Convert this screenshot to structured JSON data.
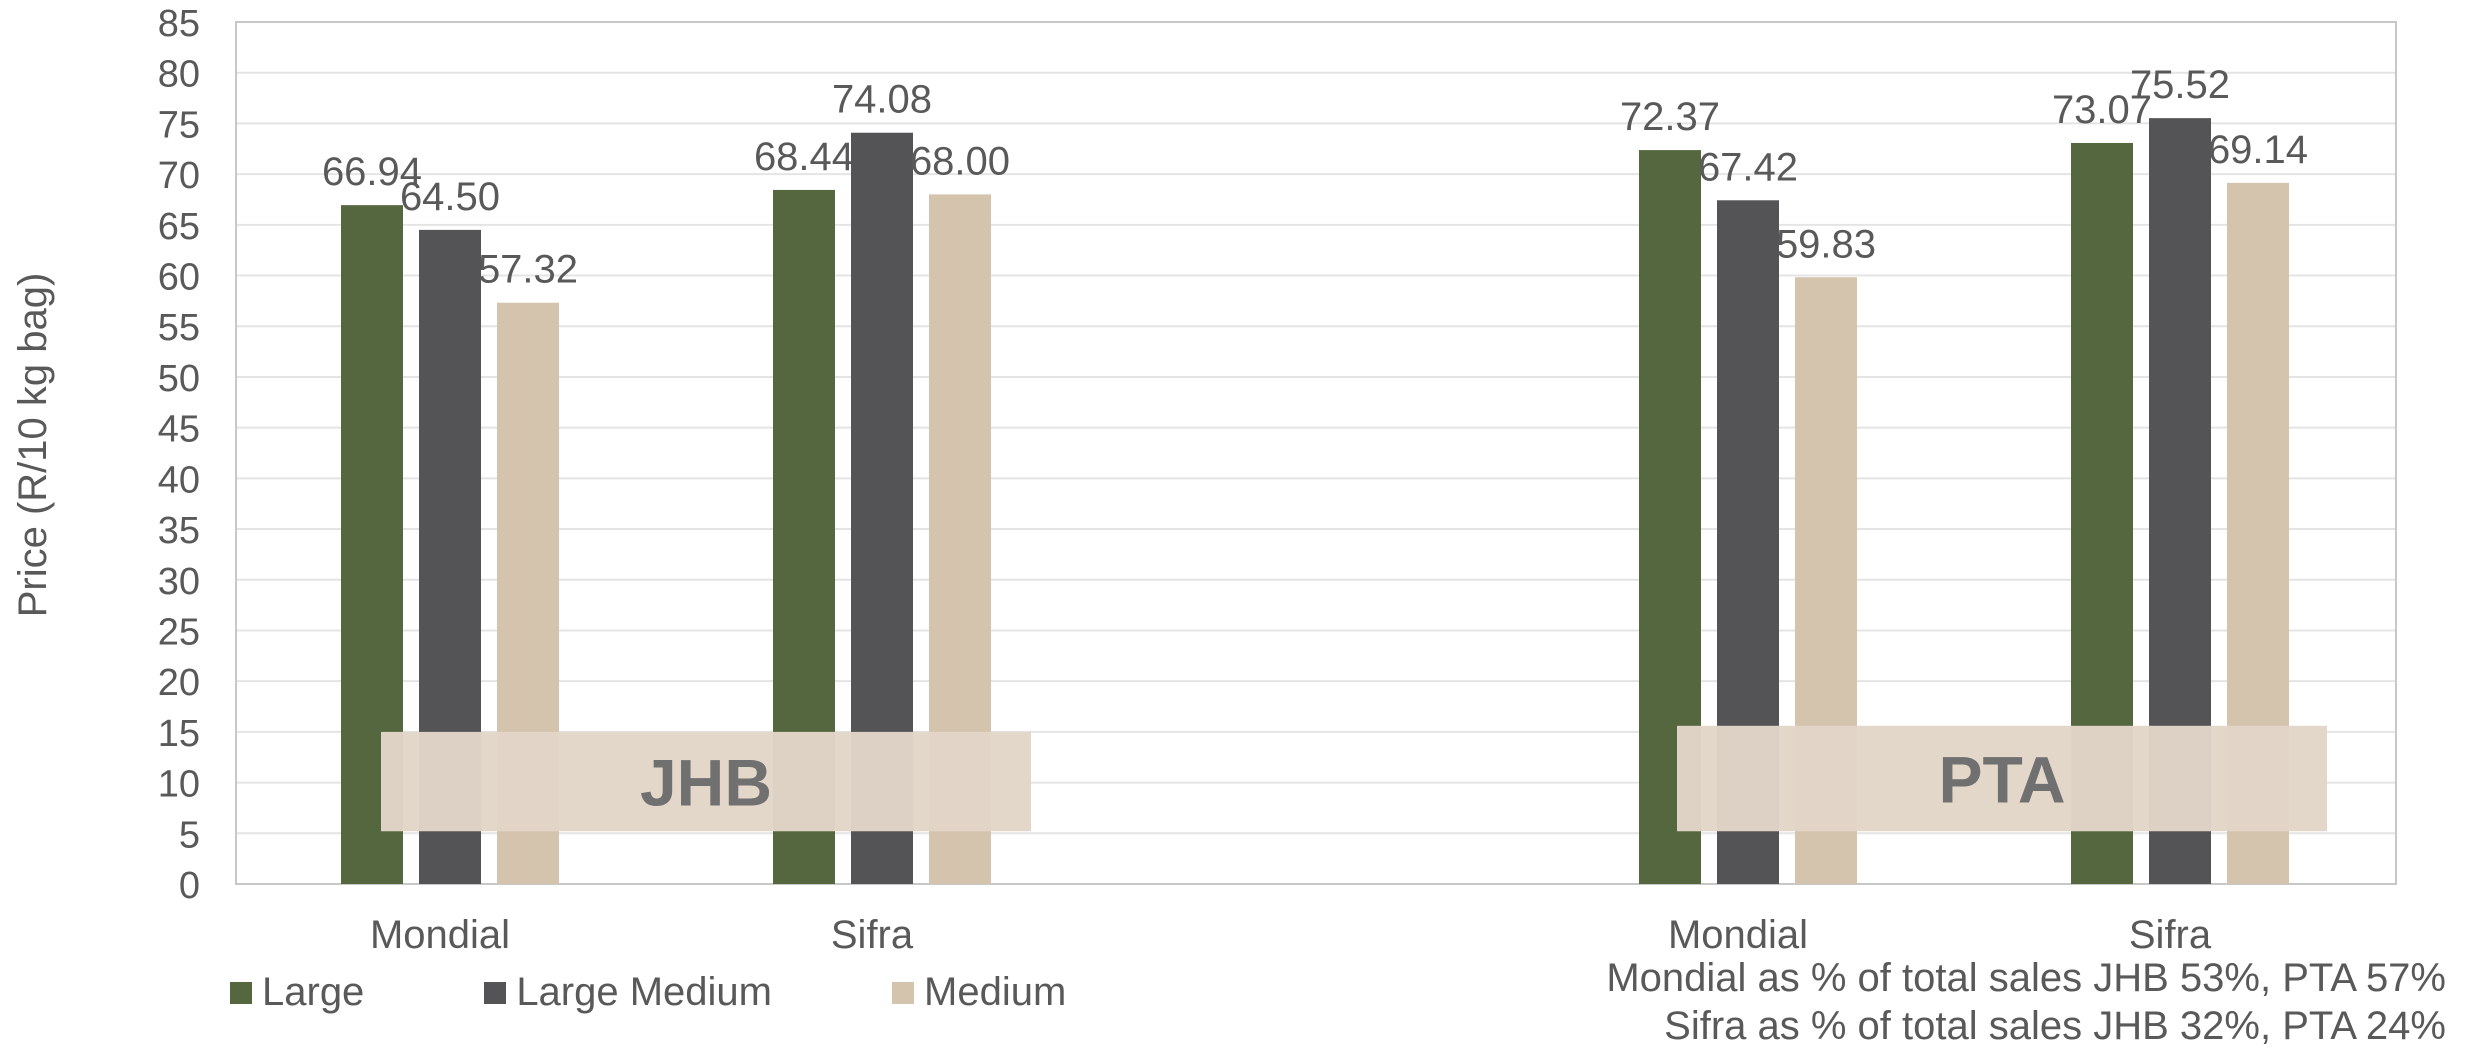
{
  "chart_data": {
    "type": "bar",
    "ylabel": "Price (R/10 kg bag)",
    "ylim": [
      0,
      85
    ],
    "ytick_step": 5,
    "grid": true,
    "legend_position": "bottom-left",
    "groups": [
      {
        "label": "JHB",
        "categories": [
          {
            "name": "Mondial",
            "values": [
              66.94,
              64.5,
              57.32
            ]
          },
          {
            "name": "Sifra",
            "values": [
              68.44,
              74.08,
              68.0
            ]
          }
        ]
      },
      {
        "label": "PTA",
        "categories": [
          {
            "name": "Mondial",
            "values": [
              72.37,
              67.42,
              59.83
            ]
          },
          {
            "name": "Sifra",
            "values": [
              73.07,
              75.52,
              69.14
            ]
          }
        ]
      }
    ],
    "series": [
      {
        "name": "Large",
        "color": "#55673f"
      },
      {
        "name": "Large Medium",
        "color": "#545456"
      },
      {
        "name": "Medium",
        "color": "#d4c3ad"
      }
    ],
    "group_label_color": "#707070",
    "group_band_color": "#e2d6c8",
    "notes": [
      "Mondial as % of total sales JHB 53%, PTA 57%",
      "Sifra as % of total sales JHB 32%, PTA 24%"
    ]
  }
}
